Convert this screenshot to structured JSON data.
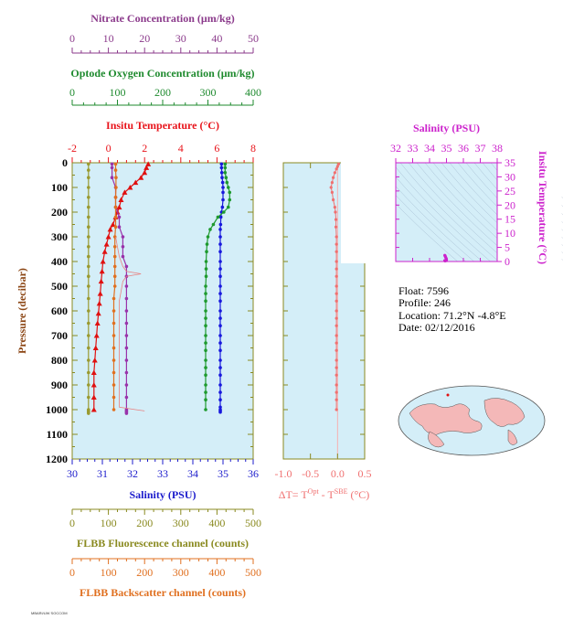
{
  "chart_data": {
    "type": "line",
    "main_panel": {
      "y_label": "Pressure (decibar)",
      "y_range": [
        0,
        1200
      ],
      "y_ticks": [
        "0",
        "100",
        "200",
        "300",
        "400",
        "500",
        "600",
        "700",
        "800",
        "900",
        "1000",
        "1100",
        "1200"
      ],
      "top_axes": [
        {
          "id": "nitrate",
          "title": "Nitrate Concentration (μm/kg)",
          "color": "#8b3a8b",
          "range": [
            0,
            50
          ],
          "ticks": [
            "0",
            "10",
            "20",
            "30",
            "40",
            "50"
          ]
        },
        {
          "id": "oxygen",
          "title": "Optode Oxygen Concentration (μm/kg)",
          "color": "#1e8a2e",
          "range": [
            0,
            400
          ],
          "ticks": [
            "0",
            "100",
            "200",
            "300",
            "400"
          ]
        },
        {
          "id": "temperature",
          "title": "Insitu Temperature (°C)",
          "color": "#e8141b",
          "range": [
            -2,
            8
          ],
          "ticks": [
            "-2",
            "0",
            "2",
            "4",
            "6",
            "8"
          ]
        }
      ],
      "bottom_axes": [
        {
          "id": "salinity",
          "title": "Salinity (PSU)",
          "color": "#1c1ccc",
          "range": [
            30,
            36
          ],
          "ticks": [
            "30",
            "31",
            "32",
            "33",
            "34",
            "35",
            "36"
          ]
        },
        {
          "id": "fluorescence",
          "title": "FLBB Fluorescence channel (counts)",
          "color": "#8a8a20",
          "range": [
            0,
            500
          ],
          "ticks": [
            "0",
            "100",
            "200",
            "300",
            "400",
            "500"
          ]
        },
        {
          "id": "backscatter",
          "title": "FLBB Backscatter channel (counts)",
          "color": "#e07020",
          "range": [
            0,
            500
          ],
          "ticks": [
            "0",
            "100",
            "200",
            "300",
            "400",
            "500"
          ]
        }
      ],
      "series": [
        {
          "axis": "salinity",
          "color": "#1818dd",
          "marker": "circle",
          "x": [
            34.95,
            34.95,
            34.96,
            34.97,
            34.99,
            35.0,
            35.0,
            35.0,
            34.98,
            34.95,
            34.93,
            34.92,
            34.91,
            34.91,
            34.91,
            34.91,
            34.91,
            34.91,
            34.91,
            34.91,
            34.91,
            34.91,
            34.91,
            34.91,
            34.91,
            34.91,
            34.91,
            34.91,
            34.91,
            34.91,
            34.91,
            34.91,
            34.91,
            34.91,
            34.91,
            34.91,
            34.91,
            34.91
          ],
          "y": [
            5,
            20,
            40,
            60,
            80,
            100,
            120,
            150,
            180,
            200,
            220,
            250,
            270,
            300,
            330,
            360,
            400,
            430,
            460,
            500,
            530,
            560,
            600,
            630,
            660,
            700,
            730,
            760,
            800,
            830,
            860,
            900,
            930,
            960,
            990,
            1000,
            1005,
            1010
          ]
        },
        {
          "axis": "oxygen",
          "color": "#1e9a2e",
          "marker": "circle",
          "x": [
            338,
            338,
            338,
            340,
            342,
            345,
            348,
            348,
            345,
            335,
            322,
            312,
            305,
            300,
            298,
            297,
            296,
            296,
            296,
            295,
            295,
            295,
            295,
            295,
            295,
            295,
            295,
            295,
            295,
            295,
            295,
            295,
            295,
            295,
            295
          ],
          "y": [
            5,
            20,
            40,
            60,
            80,
            100,
            120,
            150,
            180,
            200,
            220,
            250,
            270,
            300,
            330,
            360,
            400,
            430,
            460,
            500,
            530,
            560,
            600,
            630,
            660,
            700,
            730,
            760,
            800,
            830,
            860,
            900,
            930,
            960,
            1000
          ]
        },
        {
          "axis": "temperature",
          "color": "#e01010",
          "marker": "triangle",
          "x": [
            2.2,
            2.1,
            2.0,
            1.8,
            1.5,
            1.2,
            0.9,
            0.7,
            0.6,
            0.5,
            0.4,
            0.25,
            0.1,
            0.0,
            -0.1,
            -0.2,
            -0.3,
            -0.35,
            -0.4,
            -0.45,
            -0.5,
            -0.55,
            -0.6,
            -0.65,
            -0.7,
            -0.75,
            -0.8,
            -0.8,
            -0.8,
            -0.8
          ],
          "y": [
            5,
            20,
            40,
            60,
            80,
            100,
            120,
            150,
            180,
            200,
            220,
            250,
            270,
            300,
            330,
            360,
            400,
            440,
            480,
            530,
            570,
            610,
            650,
            700,
            750,
            800,
            850,
            900,
            950,
            1000
          ]
        },
        {
          "axis": "nitrate",
          "color": "#9933aa",
          "marker": "circle",
          "x": [
            11,
            11,
            11,
            12,
            12,
            12,
            13,
            13,
            14,
            14,
            14,
            15,
            15,
            15,
            15,
            15,
            15,
            15,
            15,
            15,
            15,
            15,
            15,
            15,
            15,
            15,
            15
          ],
          "y": [
            5,
            20,
            60,
            100,
            140,
            180,
            220,
            260,
            300,
            340,
            380,
            420,
            460,
            500,
            550,
            600,
            650,
            700,
            750,
            800,
            850,
            900,
            950,
            1000,
            1005,
            1010,
            1015
          ]
        },
        {
          "axis": "fluorescence",
          "color": "#9a9a30",
          "marker": "circle",
          "x": [
            45,
            45,
            45,
            45,
            45,
            45,
            45,
            45,
            45,
            45,
            45,
            45,
            45,
            45,
            45,
            45,
            45,
            45,
            45,
            45,
            45,
            45,
            45,
            45,
            45,
            45,
            45
          ],
          "y": [
            5,
            30,
            60,
            100,
            140,
            180,
            220,
            260,
            300,
            340,
            380,
            420,
            460,
            500,
            550,
            600,
            650,
            700,
            750,
            800,
            850,
            900,
            950,
            1000,
            1005,
            1010,
            1015
          ]
        },
        {
          "axis": "backscatter",
          "color": "#e07020",
          "marker": "circle",
          "x": [
            120,
            120,
            121,
            121,
            120,
            120,
            120,
            120,
            118,
            118,
            118,
            118,
            118,
            118,
            115,
            115,
            115,
            115,
            115,
            115,
            115,
            115,
            115,
            115
          ],
          "y": [
            5,
            30,
            60,
            100,
            140,
            180,
            220,
            260,
            300,
            340,
            380,
            420,
            460,
            500,
            550,
            600,
            650,
            700,
            750,
            800,
            850,
            900,
            950,
            1000
          ]
        },
        {
          "axis": "temperature",
          "color": "#e88080",
          "marker": "none",
          "x": [
            0.4,
            0.5,
            0.6,
            0.7,
            0.8,
            1.0,
            1.8,
            1.0,
            0.8,
            0.7,
            0.6,
            0.6,
            0.6,
            0.6,
            0.6,
            0.6,
            0.6,
            0.6,
            0.6,
            0.6,
            0.6,
            0.6,
            0.6,
            1.5,
            2.0
          ],
          "y": [
            300,
            340,
            380,
            400,
            420,
            440,
            450,
            460,
            480,
            520,
            560,
            600,
            650,
            700,
            750,
            800,
            850,
            900,
            920,
            940,
            960,
            980,
            990,
            1000,
            1005
          ]
        }
      ]
    },
    "dt_panel": {
      "x_label": "ΔT= T",
      "x_label_sup1": "Opt",
      "x_label_mid": " - T",
      "x_label_sup2": "SBE",
      "x_label_end": " (°C)",
      "x_range": [
        -1.0,
        0.5
      ],
      "x_ticks": [
        "-1.0",
        "-0.5",
        "0.0",
        "0.5"
      ],
      "color": "#f07070",
      "x": [
        0.02,
        0.0,
        -0.02,
        -0.05,
        -0.08,
        -0.1,
        -0.12,
        -0.1,
        -0.08,
        -0.05,
        -0.04,
        -0.03,
        -0.03,
        -0.02,
        -0.02,
        -0.02,
        -0.02,
        -0.02,
        -0.02,
        -0.02,
        -0.02,
        -0.02,
        -0.02,
        -0.02,
        -0.02,
        -0.02,
        -0.02,
        -0.02,
        -0.02,
        -0.02,
        -0.02,
        -0.02,
        -0.02,
        -0.02,
        -0.02
      ],
      "y": [
        5,
        15,
        25,
        40,
        60,
        80,
        100,
        120,
        150,
        180,
        200,
        230,
        260,
        300,
        330,
        360,
        400,
        430,
        460,
        500,
        530,
        560,
        600,
        630,
        660,
        700,
        730,
        760,
        800,
        830,
        860,
        900,
        930,
        960,
        1000
      ]
    },
    "ts_panel": {
      "title": "Salinity (PSU)",
      "title_color": "#cc22cc",
      "x_range": [
        32,
        38
      ],
      "x_ticks": [
        "32",
        "33",
        "34",
        "35",
        "36",
        "37",
        "38"
      ],
      "y_label": "Insitu Temperature (°C)",
      "y_range": [
        0,
        35
      ],
      "y_ticks": [
        "0",
        "5",
        "10",
        "15",
        "20",
        "25",
        "30",
        "35"
      ],
      "points_s": [
        34.9,
        34.92,
        34.94,
        34.96,
        34.98,
        35.0,
        35.0,
        34.99,
        34.97,
        34.95,
        34.93,
        34.91,
        34.91,
        34.91,
        34.91,
        34.91,
        34.91
      ],
      "points_t": [
        2.2,
        2.0,
        1.7,
        1.4,
        1.1,
        0.8,
        0.6,
        0.4,
        0.2,
        0.0,
        -0.2,
        -0.4,
        -0.5,
        -0.6,
        -0.7,
        -0.8,
        -0.8
      ]
    },
    "info": {
      "float": "Float:  7596",
      "profile": "Profile:  246",
      "location": "Location:  71.2°N  -4.8°E",
      "date": "Date:  02/12/2016"
    },
    "footer_note": "MBARI/UW SOCCOM"
  }
}
